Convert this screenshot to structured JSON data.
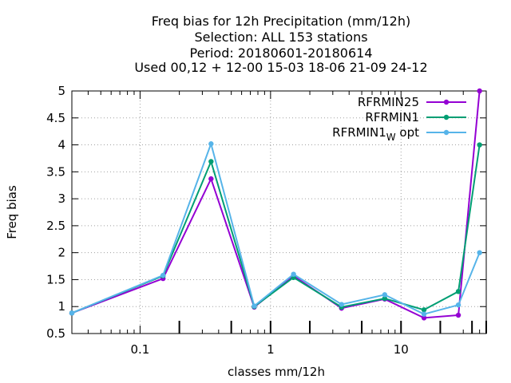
{
  "chart_data": {
    "type": "line",
    "title_lines": [
      "Freq bias  for 12h Precipitation (mm/12h)",
      "Selection: ALL    153 stations",
      "Period: 20180601-20180614",
      "Used  00,12  + 12-00 15-03 18-06 21-09 24-12"
    ],
    "xlabel": "classes mm/12h",
    "ylabel": "Freq bias",
    "x_scale": "log",
    "xlim": [
      0.03,
      45
    ],
    "ylim": [
      0.5,
      5
    ],
    "x_ticks": [
      {
        "value": 0.1,
        "label": "0.1"
      },
      {
        "value": 1,
        "label": "1"
      },
      {
        "value": 10,
        "label": "10"
      }
    ],
    "y_ticks": [
      {
        "value": 0.5,
        "label": "0.5"
      },
      {
        "value": 1,
        "label": "1"
      },
      {
        "value": 1.5,
        "label": "1.5"
      },
      {
        "value": 2,
        "label": "2"
      },
      {
        "value": 2.5,
        "label": "2.5"
      },
      {
        "value": 3,
        "label": "3"
      },
      {
        "value": 3.5,
        "label": "3.5"
      },
      {
        "value": 4,
        "label": "4"
      },
      {
        "value": 4.5,
        "label": "4.5"
      },
      {
        "value": 5,
        "label": "5"
      }
    ],
    "grid": true,
    "legend_position": "top-right",
    "x": [
      0.03,
      0.15,
      0.35,
      0.75,
      1.5,
      3.5,
      7.5,
      15,
      27.5,
      40
    ],
    "series": [
      {
        "name": "RFRMIN25",
        "color": "#9400d3",
        "values": [
          0.88,
          1.52,
          3.37,
          0.99,
          1.57,
          0.97,
          1.14,
          0.79,
          0.84,
          5.0
        ]
      },
      {
        "name": "RFRMIN1",
        "color": "#009e73",
        "values": [
          0.88,
          1.57,
          3.69,
          1.0,
          1.54,
          0.99,
          1.15,
          0.94,
          1.28,
          4.0
        ]
      },
      {
        "name_main": "RFRMIN1",
        "name_sub": "W",
        "name_suffix": "opt",
        "color": "#56b4e9",
        "values": [
          0.88,
          1.58,
          4.02,
          1.01,
          1.6,
          1.04,
          1.22,
          0.86,
          1.03,
          2.0
        ]
      }
    ]
  }
}
